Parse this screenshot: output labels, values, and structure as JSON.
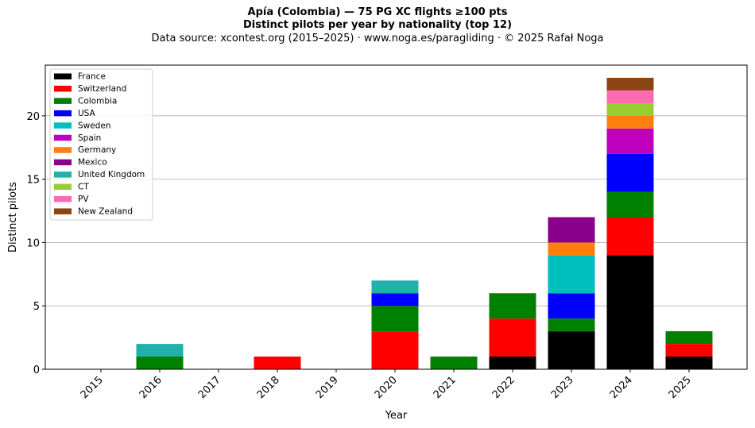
{
  "header": {
    "title_line1": "Apía (Colombia)  —  75 PG XC flights ≥100 pts",
    "title_line2": "Distinct pilots per year by nationality (top 12)",
    "subtitle": "Data source: xcontest.org (2015–2025)  ·  www.noga.es/paragliding  ·  © 2025 Rafał Noga"
  },
  "chart_data": {
    "type": "bar",
    "stacked": true,
    "title": "Apía (Colombia)  —  75 PG XC flights ≥100 pts",
    "subtitle": "Distinct pilots per year by nationality (top 12)",
    "xlabel": "Year",
    "ylabel": "Distinct pilots",
    "ylim": [
      0,
      24
    ],
    "yticks": [
      0,
      5,
      10,
      15,
      20
    ],
    "grid": "horizontal",
    "legend_position": "top-left",
    "categories": [
      "2015",
      "2016",
      "2017",
      "2018",
      "2019",
      "2020",
      "2021",
      "2022",
      "2023",
      "2024",
      "2025"
    ],
    "series": [
      {
        "name": "France",
        "color": "#000000",
        "values": [
          0,
          0,
          0,
          0,
          0,
          0,
          0,
          1,
          3,
          9,
          1
        ]
      },
      {
        "name": "Switzerland",
        "color": "#ff0000",
        "values": [
          0,
          0,
          0,
          1,
          0,
          3,
          0,
          3,
          0,
          3,
          1
        ]
      },
      {
        "name": "Colombia",
        "color": "#008000",
        "values": [
          0,
          1,
          0,
          0,
          0,
          2,
          1,
          2,
          1,
          2,
          1
        ]
      },
      {
        "name": "USA",
        "color": "#0000ff",
        "values": [
          0,
          0,
          0,
          0,
          0,
          1,
          0,
          0,
          2,
          3,
          0
        ]
      },
      {
        "name": "Sweden",
        "color": "#00bfbf",
        "values": [
          0,
          0,
          0,
          0,
          0,
          0,
          0,
          0,
          3,
          0,
          0
        ]
      },
      {
        "name": "Spain",
        "color": "#bf00bf",
        "values": [
          0,
          0,
          0,
          0,
          0,
          0,
          0,
          0,
          0,
          2,
          0
        ]
      },
      {
        "name": "Germany",
        "color": "#ff7f0e",
        "values": [
          0,
          0,
          0,
          0,
          0,
          0,
          0,
          0,
          1,
          1,
          0
        ]
      },
      {
        "name": "Mexico",
        "color": "#8b008b",
        "values": [
          0,
          0,
          0,
          0,
          0,
          0,
          0,
          0,
          2,
          0,
          0
        ]
      },
      {
        "name": "United Kingdom",
        "color": "#20b2aa",
        "values": [
          0,
          1,
          0,
          0,
          0,
          1,
          0,
          0,
          0,
          0,
          0
        ]
      },
      {
        "name": "CT",
        "color": "#9acd32",
        "values": [
          0,
          0,
          0,
          0,
          0,
          0,
          0,
          0,
          0,
          1,
          0
        ]
      },
      {
        "name": "PV",
        "color": "#ff69b4",
        "values": [
          0,
          0,
          0,
          0,
          0,
          0,
          0,
          0,
          0,
          1,
          0
        ]
      },
      {
        "name": "New Zealand",
        "color": "#8b4513",
        "values": [
          0,
          0,
          0,
          0,
          0,
          0,
          0,
          0,
          0,
          1,
          0
        ]
      }
    ]
  }
}
